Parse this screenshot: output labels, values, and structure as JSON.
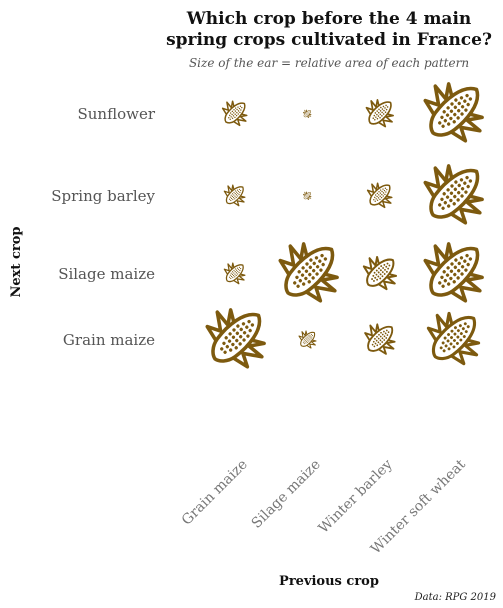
{
  "chart_data": {
    "type": "pictogram-matrix",
    "title_lines": [
      "Which crop before the 4 main",
      "spring crops cultivated in France?"
    ],
    "subtitle": "Size of the ear = relative area of each pattern",
    "xlabel": "Previous crop",
    "ylabel": "Next crop",
    "source": "Data: RPG 2019",
    "columns": [
      "Grain maize",
      "Silage maize",
      "Winter barley",
      "Winter soft wheat"
    ],
    "rows": [
      "Sunflower",
      "Spring barley",
      "Silage maize",
      "Grain maize"
    ],
    "values": [
      [
        0.18,
        0.02,
        0.22,
        1.0
      ],
      [
        0.13,
        0.02,
        0.18,
        1.0
      ],
      [
        0.13,
        1.0,
        0.32,
        1.0
      ],
      [
        1.0,
        0.09,
        0.27,
        0.78
      ]
    ],
    "icon": "corn-ear-icon",
    "color": "#7d5a0f"
  }
}
